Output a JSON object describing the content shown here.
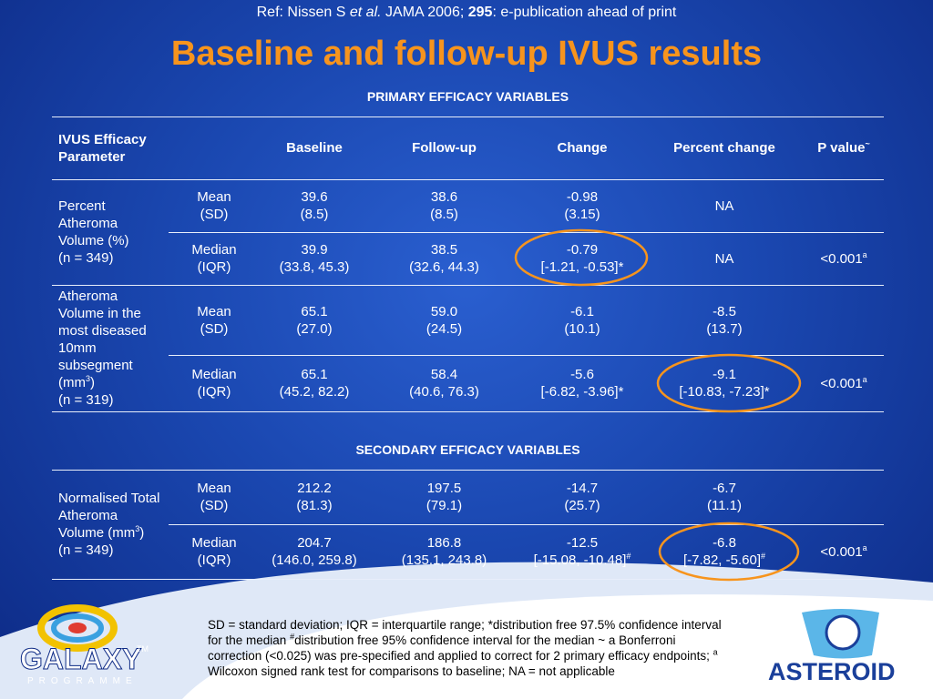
{
  "ref": {
    "author": "Ref: Nissen S",
    "etal": "et al.",
    "journal": "JAMA 2006;",
    "volume": "295",
    "rest": ": e-publication ahead of print"
  },
  "title": "Baseline and follow-up IVUS results",
  "table": {
    "header": {
      "parameter": "IVUS Efficacy Parameter",
      "columns": [
        "Baseline",
        "Follow-up",
        "Change",
        "Percent change",
        "P value"
      ],
      "p_sup": "~"
    },
    "sections": [
      {
        "heading": "PRIMARY EFFICACY VARIABLES",
        "groups": [
          {
            "parameter": {
              "text": "Percent Atheroma Volume (%)",
              "n": "(n = 349)"
            },
            "rows": [
              {
                "stat": [
                  "Mean",
                  "(SD)"
                ],
                "cells": [
                  [
                    "39.6",
                    "(8.5)"
                  ],
                  [
                    "38.6",
                    "(8.5)"
                  ],
                  [
                    "-0.98",
                    "(3.15)"
                  ],
                  [
                    "NA"
                  ]
                ]
              },
              {
                "stat": [
                  "Median",
                  "(IQR)"
                ],
                "cells": [
                  [
                    "39.9",
                    "(33.8, 45.3)"
                  ],
                  [
                    "38.5",
                    "(32.6, 44.3)"
                  ],
                  [
                    "-0.79",
                    "[-1.21, -0.53]*"
                  ],
                  [
                    "NA"
                  ]
                ],
                "p": {
                  "value": "<0.001",
                  "sup": "a"
                }
              }
            ]
          },
          {
            "parameter": {
              "text": "Atheroma Volume in the most diseased 10mm subsegment (mm",
              "sup": "3",
              "after": ")",
              "n": "(n = 319)"
            },
            "rows": [
              {
                "stat": [
                  "Mean",
                  "(SD)"
                ],
                "cells": [
                  [
                    "65.1",
                    "(27.0)"
                  ],
                  [
                    "59.0",
                    "(24.5)"
                  ],
                  [
                    "-6.1",
                    "(10.1)"
                  ],
                  [
                    "-8.5",
                    "(13.7)"
                  ]
                ]
              },
              {
                "stat": [
                  "Median",
                  "(IQR)"
                ],
                "cells": [
                  [
                    "65.1",
                    "(45.2, 82.2)"
                  ],
                  [
                    "58.4",
                    "(40.6, 76.3)"
                  ],
                  [
                    "-5.6",
                    "[-6.82, -3.96]*"
                  ],
                  [
                    "-9.1",
                    "[-10.83, -7.23]*"
                  ]
                ],
                "p": {
                  "value": "<0.001",
                  "sup": "a"
                }
              }
            ]
          }
        ]
      },
      {
        "heading": "SECONDARY EFFICACY VARIABLES",
        "groups": [
          {
            "parameter": {
              "text": "Normalised Total Atheroma Volume (mm",
              "sup": "3",
              "after": ")",
              "n": "(n = 349)"
            },
            "rows": [
              {
                "stat": [
                  "Mean",
                  "(SD)"
                ],
                "cells": [
                  [
                    "212.2",
                    "(81.3)"
                  ],
                  [
                    "197.5",
                    "(79.1)"
                  ],
                  [
                    "-14.7",
                    "(25.7)"
                  ],
                  [
                    "-6.7",
                    "(11.1)"
                  ]
                ]
              },
              {
                "stat": [
                  "Median",
                  "(IQR)"
                ],
                "cells": [
                  [
                    "204.7",
                    "(146.0, 259.8)"
                  ],
                  [
                    "186.8",
                    "(135.1, 243.8)"
                  ],
                  [
                    "-12.5",
                    {
                      "text": "[-15.08, -10.48]",
                      "sup": "#"
                    }
                  ],
                  [
                    "-6.8",
                    {
                      "text": "[-7.82, -5.60]",
                      "sup": "#"
                    }
                  ]
                ],
                "p": {
                  "value": "<0.001",
                  "sup": "a"
                }
              }
            ]
          }
        ]
      }
    ]
  },
  "footnote": [
    "SD = standard deviation; IQR = interquartile range; *distribution free 97.5% confidence interval for the median ",
    "#",
    "distribution free 95% confidence interval for the median ~ a Bonferroni correction (<0.025) was pre-specified and applied to correct for 2  primary efficacy endpoints; ",
    "a",
    " Wilcoxon signed rank test for comparisons to baseline; NA = not applicable"
  ],
  "logos": {
    "galaxy": "GALAXY",
    "tm": "TM",
    "programme": "PROGRAMME",
    "asteroid": "ASTEROID"
  }
}
